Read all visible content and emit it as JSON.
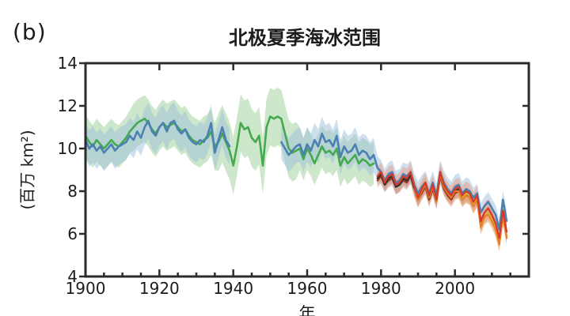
{
  "panel_label": "(b)",
  "title": "北极夏季海冰范围",
  "chart_data": {
    "type": "line",
    "title": "北极夏季海冰范围",
    "xlabel": "年",
    "ylabel": "(百万 km²)",
    "xlim": [
      1900,
      2020
    ],
    "ylim": [
      4,
      14
    ],
    "grid": false,
    "legend": "none",
    "yticks": [
      {
        "v": 4,
        "label": "4"
      },
      {
        "v": 6,
        "label": "6"
      },
      {
        "v": 8,
        "label": "8"
      },
      {
        "v": 10,
        "label": "10"
      },
      {
        "v": 12,
        "label": "12"
      },
      {
        "v": 14,
        "label": "14"
      }
    ],
    "xticks_major": [
      1900,
      1920,
      1940,
      1960,
      1980,
      2000,
      2020
    ],
    "xticks_minor": [
      1905,
      1910,
      1915,
      1925,
      1930,
      1935,
      1945,
      1950,
      1955,
      1965,
      1970,
      1975,
      1985,
      1990,
      1995,
      2005,
      2010,
      2015
    ],
    "xtick_labels": [
      {
        "year": 1900,
        "label": "1900"
      },
      {
        "year": 1920,
        "label": "1920"
      },
      {
        "year": 1940,
        "label": "1940"
      },
      {
        "year": 1960,
        "label": "1960"
      },
      {
        "year": 1980,
        "label": "1980"
      },
      {
        "year": 2000,
        "label": "2000"
      }
    ],
    "series": [
      {
        "name": "green",
        "color": "#45a94f",
        "band_color": "#8fc98a",
        "band_alpha": 0.45,
        "line_width": 2.6,
        "start": 1900,
        "band": [
          [
            1912,
            1.0
          ],
          [
            1935,
            1.1
          ],
          [
            1957,
            1.35
          ],
          [
            1978,
            1.0
          ]
        ],
        "values": [
          10.6,
          10.3,
          10.1,
          10.4,
          10.2,
          10.0,
          10.2,
          10.4,
          10.2,
          10.1,
          10.3,
          10.5,
          10.8,
          11.0,
          11.2,
          11.3,
          11.4,
          11.2,
          10.9,
          10.7,
          11.0,
          11.2,
          11.0,
          11.1,
          11.2,
          11.0,
          10.8,
          10.9,
          10.6,
          10.4,
          10.3,
          10.2,
          10.4,
          10.5,
          10.8,
          10.1,
          10.3,
          10.7,
          10.3,
          9.9,
          9.2,
          10.1,
          11.2,
          10.9,
          11.0,
          10.5,
          10.3,
          10.6,
          9.2,
          11.0,
          11.5,
          11.4,
          11.5,
          11.4,
          10.7,
          10.0,
          9.8,
          9.9,
          10.0,
          9.5,
          10.0,
          9.7,
          9.3,
          9.7,
          10.1,
          9.8,
          9.9,
          9.7,
          10.0,
          9.2,
          9.6,
          9.3,
          9.5,
          9.7,
          9.3,
          9.5,
          9.4,
          9.2,
          9.3
        ]
      },
      {
        "name": "blue",
        "color": "#4c80b2",
        "band_color": "#9dbfdb",
        "band_alpha": 0.5,
        "line_width": 2.6,
        "start": 1900,
        "band": [
          [
            1939,
            0.85
          ],
          [
            1978,
            0.8
          ],
          [
            2004,
            0.55
          ],
          [
            2014,
            0.45
          ]
        ],
        "values": [
          10.4,
          10.0,
          10.2,
          9.9,
          10.1,
          9.8,
          10.0,
          10.2,
          9.9,
          10.1,
          10.2,
          10.3,
          10.6,
          10.4,
          10.8,
          10.5,
          11.0,
          11.3,
          10.8,
          10.6,
          11.0,
          11.2,
          10.8,
          11.2,
          11.3,
          10.9,
          10.7,
          10.9,
          10.5,
          10.3,
          10.2,
          10.4,
          10.3,
          10.6,
          11.2,
          9.8,
          10.4,
          11.0,
          10.4,
          10.1,
          null,
          null,
          null,
          null,
          null,
          null,
          null,
          null,
          null,
          null,
          null,
          null,
          null,
          10.3,
          10.0,
          9.7,
          9.9,
          10.1,
          10.2,
          9.7,
          10.2,
          9.9,
          10.4,
          10.1,
          10.7,
          10.3,
          10.4,
          10.1,
          10.6,
          9.6,
          10.1,
          9.8,
          9.9,
          10.2,
          9.7,
          9.9,
          9.8,
          9.5,
          9.7,
          9.1,
          8.9,
          8.5,
          8.8,
          8.9,
          8.4,
          8.5,
          8.8,
          8.7,
          8.9,
          8.3,
          7.9,
          8.2,
          8.4,
          7.9,
          8.4,
          7.8,
          8.9,
          8.4,
          8.1,
          7.9,
          8.2,
          8.3,
          7.9,
          8.1,
          8.0,
          7.7,
          7.9,
          7.0,
          7.3,
          7.5,
          7.2,
          6.9,
          6.2,
          7.6,
          6.6
        ]
      },
      {
        "name": "dark-red",
        "color": "#8f3b26",
        "band_color": "#c59c84",
        "band_alpha": 0.4,
        "line_width": 2.2,
        "start": 1979,
        "band": 0.35,
        "values": [
          8.5,
          8.7,
          8.3,
          8.5,
          8.6,
          8.2,
          8.3,
          8.5,
          8.4,
          8.7,
          8.1,
          7.6,
          7.9,
          8.2,
          7.6,
          8.1,
          7.5,
          8.7,
          8.1,
          7.8,
          7.6,
          7.9,
          8.0,
          7.6,
          7.8,
          7.7,
          7.3,
          7.6,
          6.4,
          6.8,
          7.0,
          6.7,
          6.3,
          5.6,
          6.9,
          5.9
        ]
      },
      {
        "name": "black",
        "color": "#2f2f2f",
        "band_color": "#8a8a8a",
        "band_alpha": 0.3,
        "line_width": 2.2,
        "start": 1979,
        "band": 0.28,
        "values": [
          8.6,
          8.8,
          8.3,
          8.6,
          8.7,
          8.2,
          8.3,
          8.6,
          8.5,
          8.8,
          8.1,
          7.6,
          8.0,
          8.3,
          7.7,
          8.2,
          7.5,
          8.8,
          8.2,
          7.9,
          7.7,
          8.0,
          8.1,
          7.7,
          7.9,
          7.8,
          7.4,
          7.7,
          6.5
        ]
      },
      {
        "name": "yellow",
        "color": "#e4bd3a",
        "band_color": null,
        "band_alpha": 0,
        "line_width": 1.8,
        "start": 2002,
        "band": 0,
        "values": [
          7.7,
          7.9,
          7.8,
          7.4,
          7.7,
          6.4,
          6.8,
          7.0,
          6.7,
          6.3,
          5.6,
          6.9,
          5.9
        ]
      },
      {
        "name": "orange",
        "color": "#e8802a",
        "band_color": "#f0a855",
        "band_alpha": 0.5,
        "line_width": 2.2,
        "start": 1989,
        "band": 0.35,
        "values": [
          8.1,
          7.6,
          8.0,
          8.3,
          7.7,
          8.2,
          7.5,
          8.8,
          8.2,
          7.9,
          7.7,
          8.0,
          8.0,
          7.6,
          7.8,
          7.7,
          7.3,
          7.6,
          6.3,
          6.8,
          6.9,
          6.6,
          6.2,
          5.5,
          6.8,
          5.8
        ]
      },
      {
        "name": "red",
        "color": "#d63a27",
        "band_color": "#eb9b85",
        "band_alpha": 0.5,
        "line_width": 2.2,
        "start": 1979,
        "band": 0.45,
        "values": [
          8.7,
          8.9,
          8.4,
          8.7,
          8.8,
          8.3,
          8.4,
          8.7,
          8.6,
          8.9,
          8.2,
          7.7,
          8.1,
          8.4,
          7.8,
          8.3,
          7.6,
          8.9,
          8.3,
          8.0,
          7.8,
          8.1,
          8.2,
          7.8,
          8.0,
          7.9,
          7.5,
          7.8,
          6.6,
          7.0,
          7.2,
          6.9,
          6.5,
          5.8,
          7.1,
          6.1
        ]
      }
    ],
    "axis_color": "#2b2b2b"
  }
}
